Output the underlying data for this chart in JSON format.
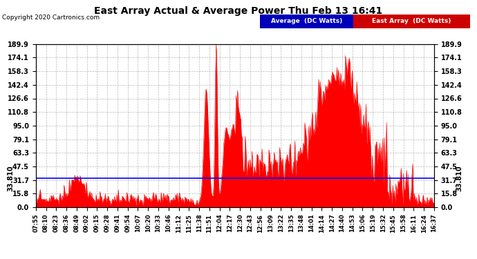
{
  "title": "East Array Actual & Average Power Thu Feb 13 16:41",
  "copyright": "Copyright 2020 Cartronics.com",
  "background_color": "#ffffff",
  "plot_bg_color": "#ffffff",
  "grid_color": "#999999",
  "average_value": 33.81,
  "average_color": "#0000ff",
  "east_array_color": "#ff0000",
  "ylim": [
    0,
    189.9
  ],
  "yticks": [
    0.0,
    15.8,
    31.7,
    47.5,
    63.3,
    79.1,
    95.0,
    110.8,
    126.6,
    142.4,
    158.3,
    174.1,
    189.9
  ],
  "xtick_labels": [
    "07:55",
    "08:10",
    "08:23",
    "08:36",
    "08:49",
    "09:02",
    "09:15",
    "09:28",
    "09:41",
    "09:54",
    "10:07",
    "10:20",
    "10:33",
    "10:46",
    "11:12",
    "11:25",
    "11:38",
    "11:51",
    "12:04",
    "12:17",
    "12:30",
    "12:43",
    "12:56",
    "13:09",
    "13:22",
    "13:35",
    "13:48",
    "14:01",
    "14:14",
    "14:27",
    "14:40",
    "14:53",
    "15:06",
    "15:19",
    "15:32",
    "15:45",
    "15:58",
    "16:11",
    "16:24",
    "16:37"
  ],
  "legend_avg_bg": "#0000bb",
  "legend_east_bg": "#cc0000",
  "legend_avg_text": "Average  (DC Watts)",
  "legend_east_text": "East Array  (DC Watts)"
}
